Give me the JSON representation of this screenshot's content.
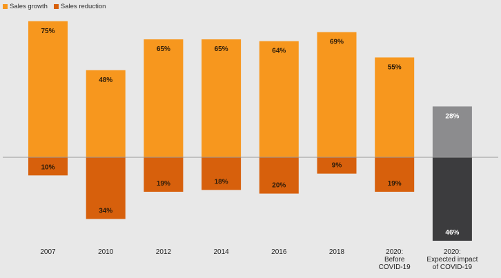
{
  "chart_data": {
    "type": "bar",
    "title": "",
    "xlabel": "",
    "ylabel": "",
    "ylim": [
      -46,
      75
    ],
    "grid": false,
    "legend_position": "top-left",
    "categories": [
      [
        "2007"
      ],
      [
        "2010"
      ],
      [
        "2012"
      ],
      [
        "2014"
      ],
      [
        "2016"
      ],
      [
        "2018"
      ],
      [
        "2020:",
        "Before",
        "COVID-19"
      ],
      [
        "2020:",
        "Expected impact",
        "of COVID-19"
      ]
    ],
    "series": [
      {
        "name": "Sales growth",
        "values": [
          75,
          48,
          65,
          65,
          64,
          69,
          55,
          28
        ],
        "color": "#f7971e",
        "highlight_color": "#8c8c8e"
      },
      {
        "name": "Sales reduction",
        "values": [
          -10,
          -34,
          -19,
          -18,
          -20,
          -9,
          -19,
          -46
        ],
        "color": "#d7600c",
        "highlight_color": "#3c3c3e"
      }
    ],
    "highlighted_category_index": 7,
    "data_labels": {
      "positive": [
        "75%",
        "48%",
        "65%",
        "65%",
        "64%",
        "69%",
        "55%",
        "28%"
      ],
      "negative": [
        "10%",
        "34%",
        "19%",
        "18%",
        "20%",
        "9%",
        "19%",
        "46%"
      ]
    },
    "colors": {
      "background": "#e8e8e8",
      "zero_line": "#9a9a9a",
      "label_on_orange": "#2a1a0a",
      "label_on_dark": "#ffffff"
    }
  },
  "legend": {
    "items": [
      {
        "label": "Sales growth",
        "color": "#f7971e"
      },
      {
        "label": "Sales reduction",
        "color": "#d7600c"
      }
    ]
  }
}
